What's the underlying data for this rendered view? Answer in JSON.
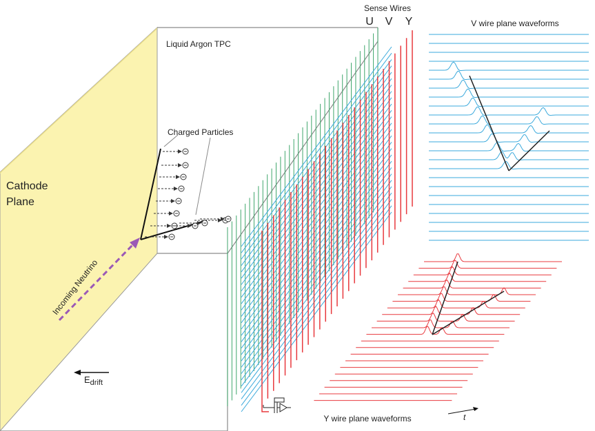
{
  "labels": {
    "sense_wires": "Sense Wires",
    "wire_u": "U",
    "wire_v": "V",
    "wire_y": "Y",
    "v_waveforms": "V wire plane waveforms",
    "y_waveforms": "Y wire plane waveforms",
    "tpc": "Liquid Argon TPC",
    "charged_particles": "Charged Particles",
    "cathode_line1": "Cathode",
    "cathode_line2": "Plane",
    "neutrino": "Incoming Neutrino",
    "edrift_main": "E",
    "edrift_sub": "drift",
    "time_axis": "t",
    "electron_symbol": "⊖"
  },
  "colors": {
    "cathode_fill": "#fbf3b0",
    "cathode_side": "#fdf7cf",
    "u_wires": "#3fa66b",
    "v_wires": "#3aa9dc",
    "y_wires": "#e8383d",
    "neutrino_arrow": "#9b59b6",
    "box_lines": "#8a8a8a",
    "track": "#111111"
  }
}
